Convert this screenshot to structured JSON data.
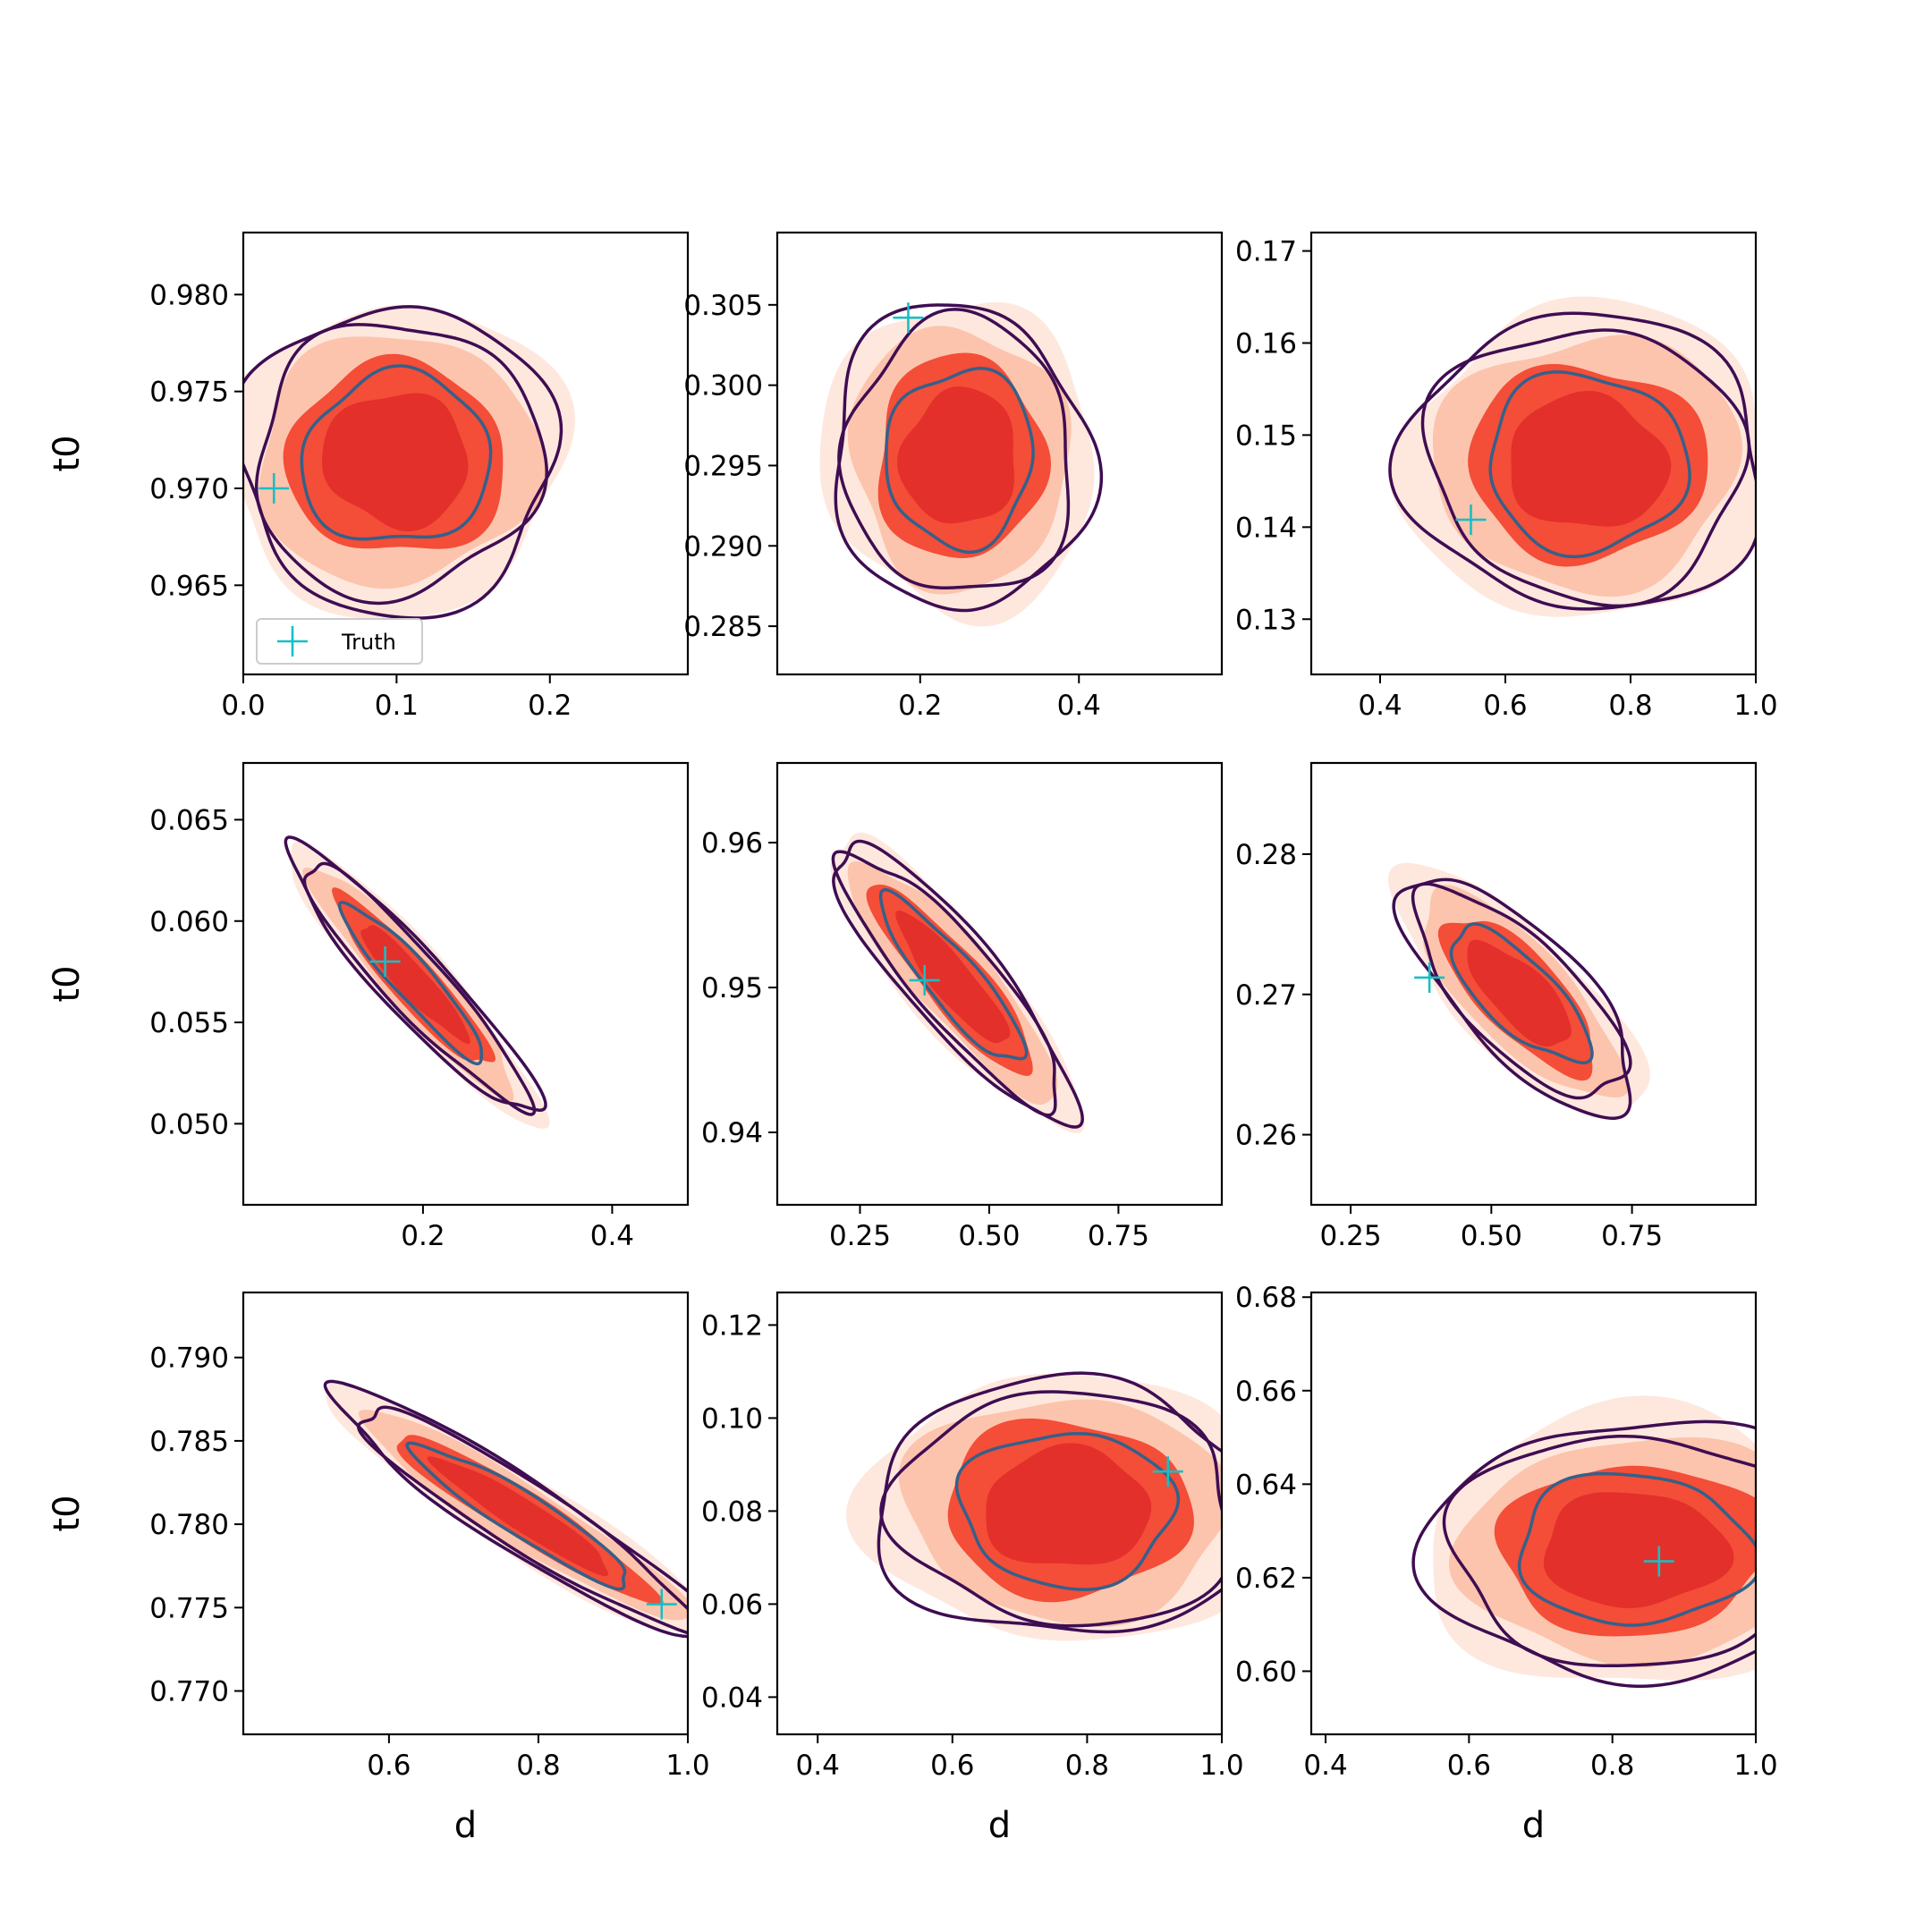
{
  "figure": {
    "legend_label": "Truth",
    "legend_placement": "lower-left"
  },
  "colors": {
    "fill_levels": [
      "#fee8de",
      "#fcc4ad",
      "#f44d38",
      "#e3302b"
    ],
    "contour_outer": "#3f0d52",
    "contour_inner": "#33618a",
    "truth_marker": "#17bfc5"
  },
  "chart_data": [
    {
      "type": "contour",
      "panel": "r1c1",
      "xlabel": "",
      "ylabel": "t0",
      "xlim": [
        0.0,
        0.29
      ],
      "ylim": [
        0.9604,
        0.9832
      ],
      "xticks": [
        "0.0",
        "0.1",
        "0.2"
      ],
      "yticks": [
        "0.965",
        "0.970",
        "0.975",
        "0.980"
      ],
      "center": [
        0.1,
        0.9715
      ],
      "sd": [
        0.045,
        0.0033
      ],
      "corr": 0.0,
      "truth": [
        0.02,
        0.97
      ],
      "legend": true
    },
    {
      "type": "contour",
      "panel": "r1c2",
      "xlabel": "",
      "ylabel": "",
      "xlim": [
        0.02,
        0.58
      ],
      "ylim": [
        0.282,
        0.3095
      ],
      "xticks": [
        "0.2",
        "0.4"
      ],
      "yticks": [
        "0.285",
        "0.290",
        "0.295",
        "0.300",
        "0.305"
      ],
      "center": [
        0.25,
        0.2955
      ],
      "sd": [
        0.07,
        0.004
      ],
      "corr": 0.0,
      "truth": [
        0.185,
        0.3042
      ],
      "legend": false
    },
    {
      "type": "contour",
      "panel": "r1c3",
      "xlabel": "",
      "ylabel": "",
      "xlim": [
        0.29,
        1.0
      ],
      "ylim": [
        0.124,
        0.172
      ],
      "xticks": [
        "0.4",
        "0.6",
        "0.8",
        "1.0"
      ],
      "yticks": [
        "0.13",
        "0.14",
        "0.15",
        "0.16",
        "0.17"
      ],
      "center": [
        0.73,
        0.147
      ],
      "sd": [
        0.12,
        0.007
      ],
      "corr": 0.0,
      "truth": [
        0.545,
        0.1408
      ],
      "legend": false
    },
    {
      "type": "contour",
      "panel": "r2c1",
      "xlabel": "",
      "ylabel": "t0",
      "xlim": [
        0.01,
        0.48
      ],
      "ylim": [
        0.046,
        0.0678
      ],
      "xticks": [
        "0.2",
        "0.4"
      ],
      "yticks": [
        "0.050",
        "0.055",
        "0.060",
        "0.065"
      ],
      "center": [
        0.19,
        0.057
      ],
      "sd": [
        0.055,
        0.0028
      ],
      "corr": -0.93,
      "truth": [
        0.16,
        0.058
      ],
      "legend": false
    },
    {
      "type": "contour",
      "panel": "r2c2",
      "xlabel": "",
      "ylabel": "",
      "xlim": [
        0.09,
        0.95
      ],
      "ylim": [
        0.935,
        0.9655
      ],
      "xticks": [
        "0.25",
        "0.50",
        "0.75"
      ],
      "yticks": [
        "0.94",
        "0.95",
        "0.96"
      ],
      "center": [
        0.43,
        0.9505
      ],
      "sd": [
        0.1,
        0.0042
      ],
      "corr": -0.88,
      "truth": [
        0.375,
        0.9505
      ],
      "legend": false
    },
    {
      "type": "contour",
      "panel": "r2c3",
      "xlabel": "",
      "ylabel": "",
      "xlim": [
        0.18,
        0.97
      ],
      "ylim": [
        0.255,
        0.2865
      ],
      "xticks": [
        "0.25",
        "0.50",
        "0.75"
      ],
      "yticks": [
        "0.26",
        "0.27",
        "0.28"
      ],
      "center": [
        0.55,
        0.27
      ],
      "sd": [
        0.09,
        0.0036
      ],
      "corr": -0.75,
      "truth": [
        0.39,
        0.2712
      ],
      "legend": false
    },
    {
      "type": "contour",
      "panel": "r3c1",
      "xlabel": "d",
      "ylabel": "t0",
      "xlim": [
        0.405,
        1.0
      ],
      "ylim": [
        0.7674,
        0.7939
      ],
      "xticks": [
        "0.6",
        "0.8",
        "1.0"
      ],
      "yticks": [
        "0.770",
        "0.775",
        "0.780",
        "0.785",
        "0.790"
      ],
      "center": [
        0.78,
        0.7805
      ],
      "sd": [
        0.11,
        0.0032
      ],
      "corr": -0.94,
      "truth": [
        0.965,
        0.7752
      ],
      "legend": false
    },
    {
      "type": "contour",
      "panel": "r3c2",
      "xlabel": "d",
      "ylabel": "",
      "xlim": [
        0.34,
        1.0
      ],
      "ylim": [
        0.032,
        0.127
      ],
      "xticks": [
        "0.4",
        "0.6",
        "0.8",
        "1.0"
      ],
      "yticks": [
        "0.04",
        "0.06",
        "0.08",
        "0.10",
        "0.12"
      ],
      "center": [
        0.77,
        0.0805
      ],
      "sd": [
        0.12,
        0.012
      ],
      "corr": 0.0,
      "truth": [
        0.92,
        0.0885
      ],
      "legend": false
    },
    {
      "type": "contour",
      "panel": "r3c3",
      "xlabel": "d",
      "ylabel": "",
      "xlim": [
        0.38,
        1.0
      ],
      "ylim": [
        0.5865,
        0.681
      ],
      "xticks": [
        "0.4",
        "0.6",
        "0.8",
        "1.0"
      ],
      "yticks": [
        "0.60",
        "0.62",
        "0.64",
        "0.66",
        "0.68"
      ],
      "center": [
        0.83,
        0.626
      ],
      "sd": [
        0.12,
        0.012
      ],
      "corr": 0.0,
      "truth": [
        0.865,
        0.6235
      ],
      "legend": false
    }
  ]
}
